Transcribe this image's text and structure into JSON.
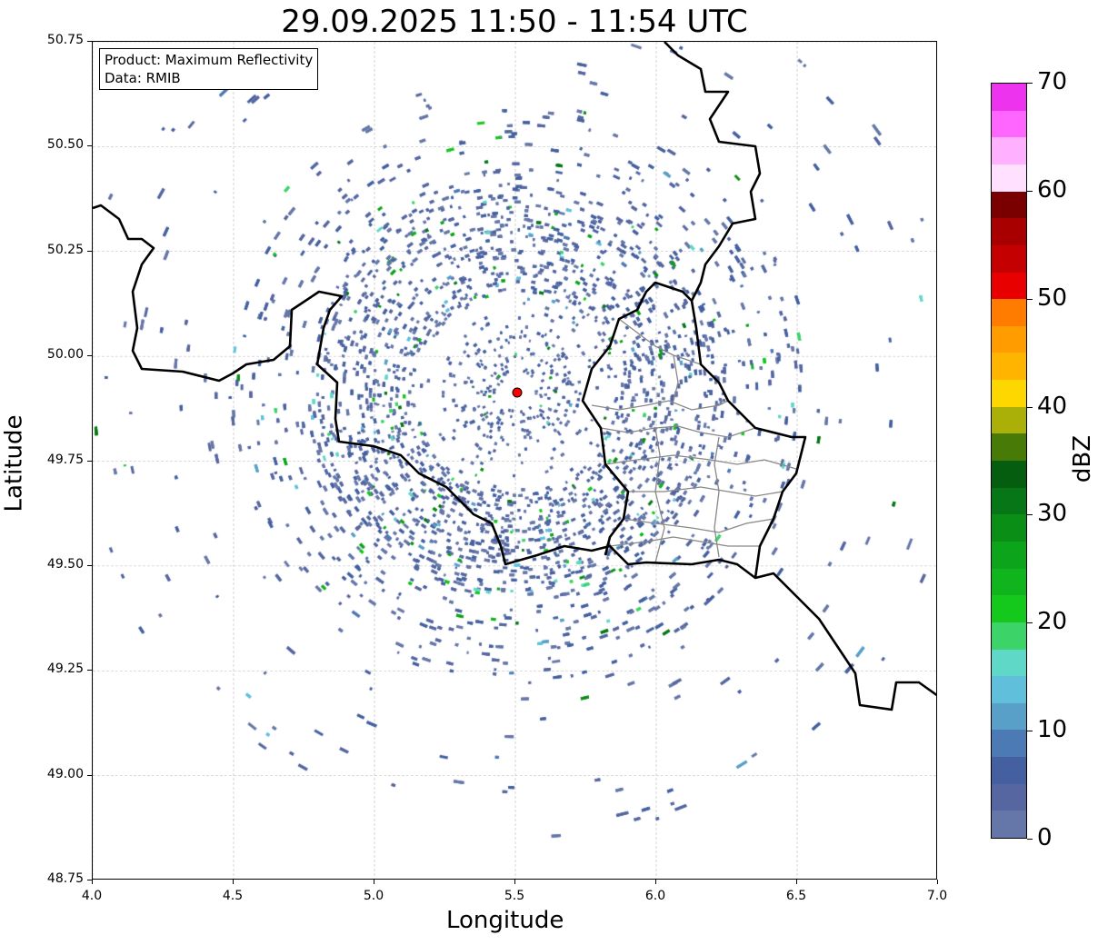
{
  "title": "29.09.2025 11:50 - 11:54 UTC",
  "info": {
    "product": "Product: Maximum Reflectivity",
    "data": "Data: RMIB"
  },
  "xlabel": "Longitude",
  "ylabel": "Latitude",
  "xticks": [
    "4.0",
    "4.5",
    "5.0",
    "5.5",
    "6.0",
    "6.5",
    "7.0"
  ],
  "yticks": [
    "50.75",
    "50.50",
    "50.25",
    "50.00",
    "49.75",
    "49.50",
    "49.25",
    "49.00",
    "48.75"
  ],
  "extent": {
    "lon": [
      4.0,
      7.0
    ],
    "lat": [
      48.75,
      50.75
    ]
  },
  "radar_station": {
    "lon": 5.505,
    "lat": 49.914,
    "color": "#ff0000"
  },
  "colorbar": {
    "label": "dBZ",
    "ticks": [
      "0",
      "10",
      "20",
      "30",
      "40",
      "50",
      "60",
      "70"
    ],
    "range": [
      0,
      70
    ],
    "colors": [
      "#6577a8",
      "#5566a0",
      "#4460a0",
      "#4c7ab4",
      "#58a0c8",
      "#60c0dc",
      "#60d8c8",
      "#3cd468",
      "#14c81c",
      "#10b41c",
      "#0ca41a",
      "#0a8e16",
      "#077616",
      "#055e10",
      "#487a08",
      "#aab008",
      "#ffd700",
      "#ffb400",
      "#ff9c00",
      "#ff7c00",
      "#e80000",
      "#c40000",
      "#a80000",
      "#7a0000",
      "#ffe0ff",
      "#ffb0ff",
      "#ff66ff",
      "#ee33ee"
    ]
  }
}
